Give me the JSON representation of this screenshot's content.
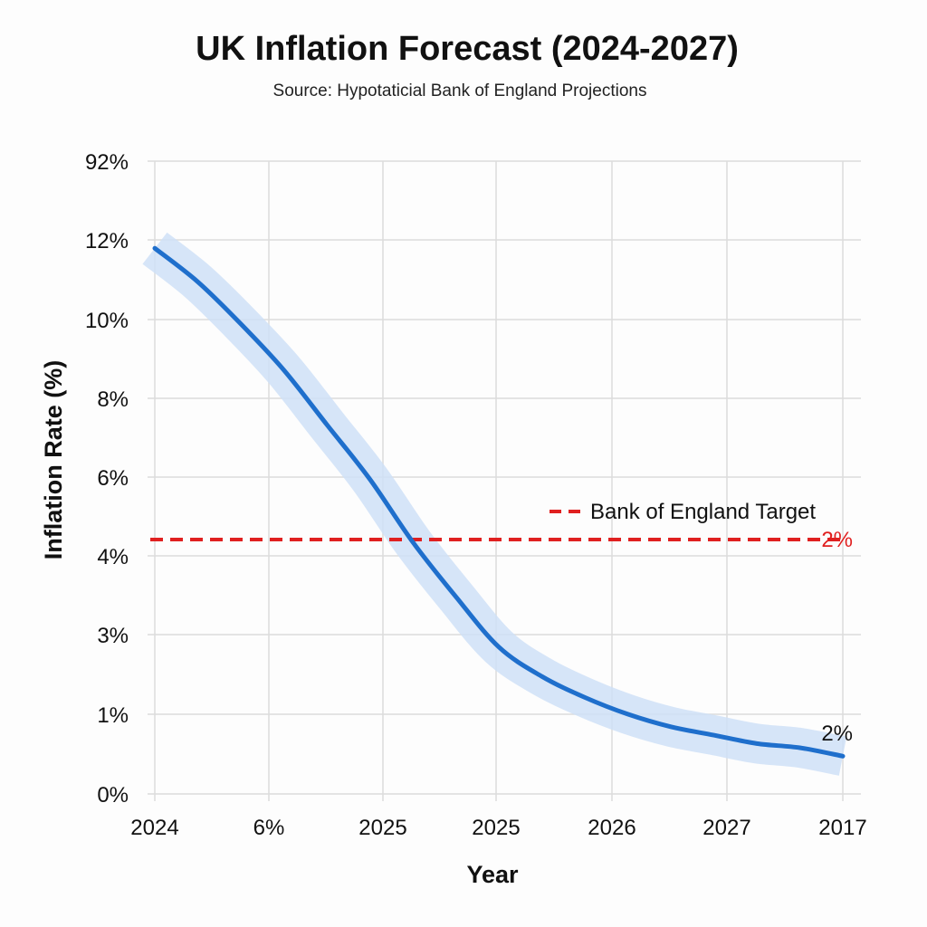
{
  "chart_data": {
    "type": "line",
    "title": "UK Inflation Forecast (2024-2027)",
    "subtitle": "Source: Hypotaticial Bank of England Projections",
    "xlabel": "Year",
    "ylabel": "Inflation Rate (%)",
    "x_tick_labels": [
      "2024",
      "6%",
      "2025",
      "2025",
      "2026",
      "2027",
      "2017"
    ],
    "y_tick_labels": [
      "0%",
      "1%",
      "3%",
      "4%",
      "6%",
      "8%",
      "10%",
      "12%",
      "92%"
    ],
    "grid": true,
    "series": [
      {
        "values": [
          13.0,
          12.2,
          11.2,
          10.1,
          8.8,
          7.5,
          6.0,
          4.7,
          3.5,
          2.8,
          2.3,
          1.9,
          1.6,
          1.4,
          1.2,
          1.1,
          0.9
        ],
        "band": 0.4,
        "color": "#1f6fcc"
      }
    ],
    "reference_line": {
      "name": "Bank of England Target",
      "value_label": "2%",
      "color": "#e02020",
      "style": "dashed"
    },
    "end_label": "2%",
    "legend_position": "right, above target line"
  },
  "colors": {
    "line": "#1f6fcc",
    "band": "#cfe0f7",
    "target": "#e02020",
    "grid": "#dcdcdc"
  }
}
